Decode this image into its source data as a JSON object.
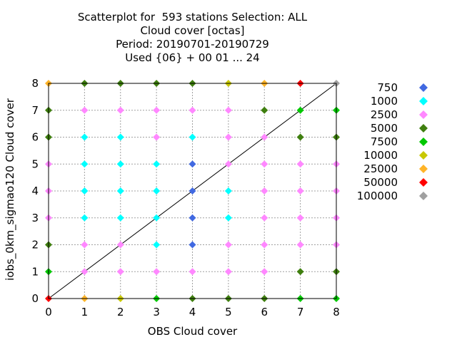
{
  "chart_data": {
    "type": "scatter",
    "title_lines": [
      "Scatterplot for  593 stations Selection: ALL",
      "Cloud cover [octas]",
      "Period: 20190701-20190729",
      "Used {06} + 00 01 ... 24"
    ],
    "xlabel": "OBS Cloud cover",
    "ylabel": "iobs_0km_sigmao120 Cloud cover",
    "xlim": [
      0,
      8
    ],
    "ylim": [
      0,
      8
    ],
    "xticks": [
      0,
      1,
      2,
      3,
      4,
      5,
      6,
      7,
      8
    ],
    "yticks": [
      0,
      1,
      2,
      3,
      4,
      5,
      6,
      7,
      8
    ],
    "grid": true,
    "diagonal": true,
    "legend_position": "right",
    "legend": [
      {
        "label": "750",
        "color": "#4169e1"
      },
      {
        "label": "1000",
        "color": "#00ffff"
      },
      {
        "label": "2500",
        "color": "#ff88ff"
      },
      {
        "label": "5000",
        "color": "#3f7f0f"
      },
      {
        "label": "7500",
        "color": "#00c800"
      },
      {
        "label": "10000",
        "color": "#c8c800"
      },
      {
        "label": "25000",
        "color": "#ffb428"
      },
      {
        "label": "50000",
        "color": "#ff0000"
      },
      {
        "label": "100000",
        "color": "#a0a0a0"
      }
    ],
    "points": [
      {
        "x": 0,
        "y": 8,
        "color": "#ffb428"
      },
      {
        "x": 1,
        "y": 8,
        "color": "#3f7f0f"
      },
      {
        "x": 2,
        "y": 8,
        "color": "#3f7f0f"
      },
      {
        "x": 3,
        "y": 8,
        "color": "#3f7f0f"
      },
      {
        "x": 4,
        "y": 8,
        "color": "#3f7f0f"
      },
      {
        "x": 5,
        "y": 8,
        "color": "#c8c800"
      },
      {
        "x": 6,
        "y": 8,
        "color": "#ffb428"
      },
      {
        "x": 7,
        "y": 8,
        "color": "#ff0000"
      },
      {
        "x": 8,
        "y": 8,
        "color": "#a0a0a0"
      },
      {
        "x": 0,
        "y": 7,
        "color": "#3f7f0f"
      },
      {
        "x": 1,
        "y": 7,
        "color": "#ff88ff"
      },
      {
        "x": 2,
        "y": 7,
        "color": "#ff88ff"
      },
      {
        "x": 3,
        "y": 7,
        "color": "#ff88ff"
      },
      {
        "x": 4,
        "y": 7,
        "color": "#ff88ff"
      },
      {
        "x": 5,
        "y": 7,
        "color": "#ff88ff"
      },
      {
        "x": 6,
        "y": 7,
        "color": "#3f7f0f"
      },
      {
        "x": 7,
        "y": 7,
        "color": "#00c800"
      },
      {
        "x": 8,
        "y": 7,
        "color": "#00c800"
      },
      {
        "x": 0,
        "y": 6,
        "color": "#3f7f0f"
      },
      {
        "x": 1,
        "y": 6,
        "color": "#00ffff"
      },
      {
        "x": 2,
        "y": 6,
        "color": "#00ffff"
      },
      {
        "x": 3,
        "y": 6,
        "color": "#ff88ff"
      },
      {
        "x": 4,
        "y": 6,
        "color": "#00ffff"
      },
      {
        "x": 5,
        "y": 6,
        "color": "#ff88ff"
      },
      {
        "x": 6,
        "y": 6,
        "color": "#ff88ff"
      },
      {
        "x": 7,
        "y": 6,
        "color": "#3f7f0f"
      },
      {
        "x": 8,
        "y": 6,
        "color": "#3f7f0f"
      },
      {
        "x": 0,
        "y": 5,
        "color": "#ff88ff"
      },
      {
        "x": 1,
        "y": 5,
        "color": "#00ffff"
      },
      {
        "x": 2,
        "y": 5,
        "color": "#00ffff"
      },
      {
        "x": 3,
        "y": 5,
        "color": "#00ffff"
      },
      {
        "x": 4,
        "y": 5,
        "color": "#4169e1"
      },
      {
        "x": 5,
        "y": 5,
        "color": "#ff88ff"
      },
      {
        "x": 6,
        "y": 5,
        "color": "#ff88ff"
      },
      {
        "x": 7,
        "y": 5,
        "color": "#ff88ff"
      },
      {
        "x": 8,
        "y": 5,
        "color": "#ff88ff"
      },
      {
        "x": 0,
        "y": 4,
        "color": "#ff88ff"
      },
      {
        "x": 1,
        "y": 4,
        "color": "#00ffff"
      },
      {
        "x": 2,
        "y": 4,
        "color": "#00ffff"
      },
      {
        "x": 3,
        "y": 4,
        "color": "#00ffff"
      },
      {
        "x": 4,
        "y": 4,
        "color": "#4169e1"
      },
      {
        "x": 5,
        "y": 4,
        "color": "#00ffff"
      },
      {
        "x": 6,
        "y": 4,
        "color": "#ff88ff"
      },
      {
        "x": 7,
        "y": 4,
        "color": "#ff88ff"
      },
      {
        "x": 8,
        "y": 4,
        "color": "#ff88ff"
      },
      {
        "x": 0,
        "y": 3,
        "color": "#ff88ff"
      },
      {
        "x": 1,
        "y": 3,
        "color": "#00ffff"
      },
      {
        "x": 2,
        "y": 3,
        "color": "#00ffff"
      },
      {
        "x": 3,
        "y": 3,
        "color": "#00ffff"
      },
      {
        "x": 4,
        "y": 3,
        "color": "#4169e1"
      },
      {
        "x": 5,
        "y": 3,
        "color": "#00ffff"
      },
      {
        "x": 6,
        "y": 3,
        "color": "#ff88ff"
      },
      {
        "x": 7,
        "y": 3,
        "color": "#ff88ff"
      },
      {
        "x": 8,
        "y": 3,
        "color": "#ff88ff"
      },
      {
        "x": 0,
        "y": 2,
        "color": "#3f7f0f"
      },
      {
        "x": 1,
        "y": 2,
        "color": "#ff88ff"
      },
      {
        "x": 2,
        "y": 2,
        "color": "#ff88ff"
      },
      {
        "x": 3,
        "y": 2,
        "color": "#00ffff"
      },
      {
        "x": 4,
        "y": 2,
        "color": "#4169e1"
      },
      {
        "x": 5,
        "y": 2,
        "color": "#ff88ff"
      },
      {
        "x": 6,
        "y": 2,
        "color": "#ff88ff"
      },
      {
        "x": 7,
        "y": 2,
        "color": "#ff88ff"
      },
      {
        "x": 8,
        "y": 2,
        "color": "#ff88ff"
      },
      {
        "x": 0,
        "y": 1,
        "color": "#00c800"
      },
      {
        "x": 1,
        "y": 1,
        "color": "#ff88ff"
      },
      {
        "x": 2,
        "y": 1,
        "color": "#ff88ff"
      },
      {
        "x": 3,
        "y": 1,
        "color": "#ff88ff"
      },
      {
        "x": 4,
        "y": 1,
        "color": "#ff88ff"
      },
      {
        "x": 5,
        "y": 1,
        "color": "#ff88ff"
      },
      {
        "x": 6,
        "y": 1,
        "color": "#ff88ff"
      },
      {
        "x": 7,
        "y": 1,
        "color": "#3f7f0f"
      },
      {
        "x": 8,
        "y": 1,
        "color": "#3f7f0f"
      },
      {
        "x": 0,
        "y": 0,
        "color": "#ff0000"
      },
      {
        "x": 1,
        "y": 0,
        "color": "#ffb428"
      },
      {
        "x": 2,
        "y": 0,
        "color": "#c8c800"
      },
      {
        "x": 3,
        "y": 0,
        "color": "#00c800"
      },
      {
        "x": 4,
        "y": 0,
        "color": "#3f7f0f"
      },
      {
        "x": 5,
        "y": 0,
        "color": "#3f7f0f"
      },
      {
        "x": 6,
        "y": 0,
        "color": "#3f7f0f"
      },
      {
        "x": 7,
        "y": 0,
        "color": "#00c800"
      },
      {
        "x": 8,
        "y": 0,
        "color": "#00c800"
      }
    ]
  }
}
